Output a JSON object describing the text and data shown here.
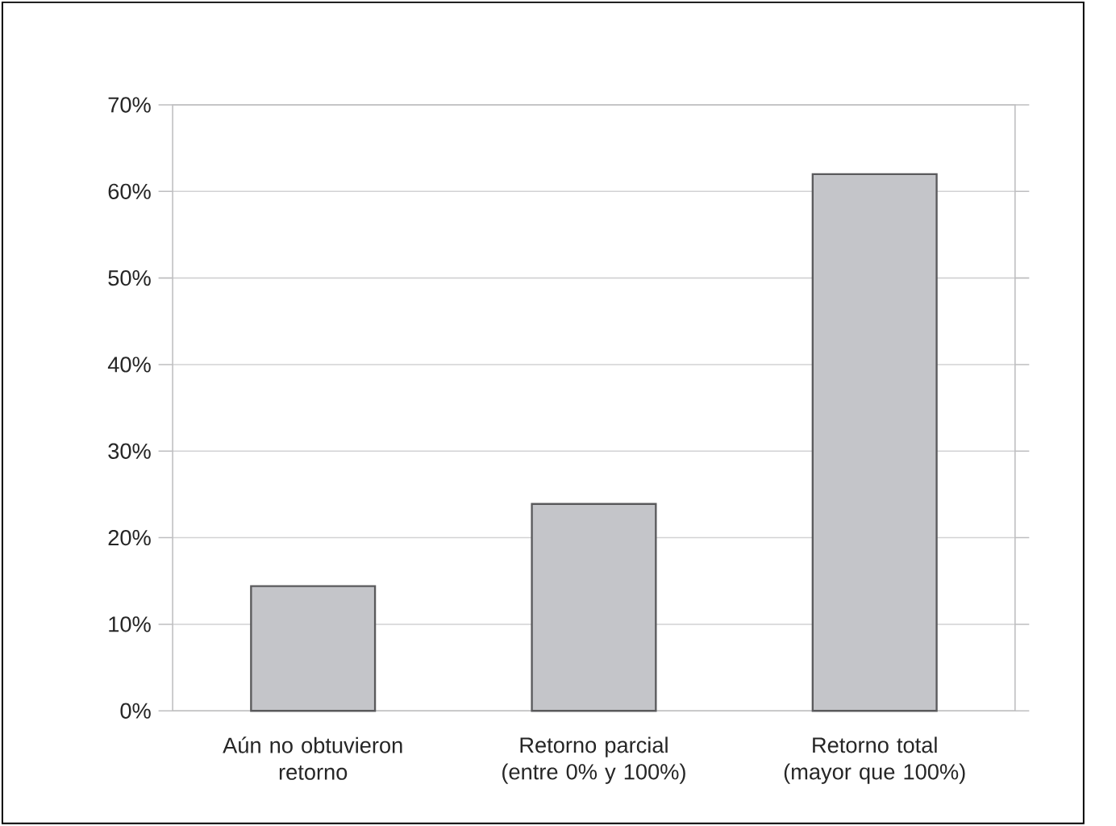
{
  "chart_data": {
    "type": "bar",
    "categories": [
      "Aún no obtuvieron retorno",
      "Retorno parcial (entre 0% y 100%)",
      "Retorno total (mayor que 100%)"
    ],
    "values": [
      14.4,
      23.9,
      62.0
    ],
    "color": "#c4c5c9",
    "ylim": [
      0,
      70
    ],
    "yticks": [
      {
        "value": 0,
        "label": "0%"
      },
      {
        "value": 10,
        "label": "10%"
      },
      {
        "value": 20,
        "label": "20%"
      },
      {
        "value": 30,
        "label": "30%"
      },
      {
        "value": 40,
        "label": "40%"
      },
      {
        "value": 50,
        "label": "50%"
      },
      {
        "value": 60,
        "label": "60%"
      },
      {
        "value": 70,
        "label": "70%"
      }
    ],
    "grid": "y"
  }
}
